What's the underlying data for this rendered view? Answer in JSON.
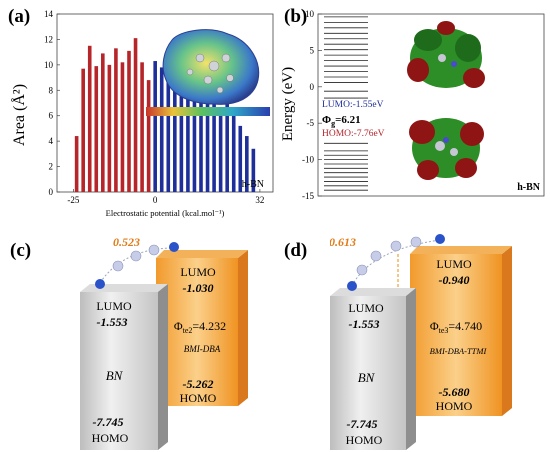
{
  "panels": {
    "a": {
      "label": "(a)",
      "ylabel": "Area (Å²)",
      "xlabel": "Electrostatic potential (kcal.mol⁻¹)",
      "tag": "h-BN",
      "xticks": [
        "-25",
        "0",
        "32"
      ],
      "yticks": [
        "0",
        "2",
        "4",
        "6",
        "8",
        "10",
        "12",
        "14"
      ],
      "colors": {
        "negative": "#b5252a",
        "positive": "#1f2f9a"
      }
    },
    "b": {
      "label": "(b)",
      "ylabel": "Energy (eV)",
      "yticks": [
        "10",
        "5",
        "0",
        "-5",
        "-10",
        "-15"
      ],
      "lumo": "LUMO:-1.55eV",
      "gap_symbol": "Φ",
      "gap_sub": "g",
      "gap_value": "=6.21",
      "homo": "HOMO:-7.76eV",
      "tag": "h-BN"
    },
    "c": {
      "label": "(c)",
      "delta": "0.523",
      "left_lumo_label": "LUMO",
      "left_lumo_value": "-1.553",
      "left_name": "BN",
      "left_homo_value": "-7.745",
      "left_homo_label": "HOMO",
      "right_lumo_label": "LUMO",
      "right_lumo_value": "-1.030",
      "phi_symbol": "Φ",
      "phi_sub": "te2",
      "phi_value": "=4.232",
      "right_name": "BMI-DBA",
      "right_homo_value": "-5.262",
      "right_homo_label": "HOMO"
    },
    "d": {
      "label": "(d)",
      "delta": "0.613",
      "left_lumo_label": "LUMO",
      "left_lumo_value": "-1.553",
      "left_name": "BN",
      "left_homo_value": "-7.745",
      "left_homo_label": "HOMO",
      "right_lumo_label": "LUMO",
      "right_lumo_value": "-0.940",
      "phi_symbol": "Φ",
      "phi_sub": "te3",
      "phi_value": "=4.740",
      "right_name": "BMI-DBA-TTMI",
      "right_homo_value": "-5.680",
      "right_homo_label": "HOMO"
    }
  },
  "chart_data": {
    "type": "bar",
    "title": "",
    "xlabel": "Electrostatic potential (kcal.mol⁻¹)",
    "ylabel": "Area (Å²)",
    "ylim": [
      0,
      14
    ],
    "xlim": [
      -30,
      36
    ],
    "x": [
      -24,
      -22,
      -20,
      -18,
      -16,
      -14,
      -12,
      -10,
      -8,
      -6,
      -4,
      -2,
      0,
      2,
      4,
      6,
      8,
      10,
      12,
      14,
      16,
      18,
      20,
      22,
      24,
      26,
      28,
      30
    ],
    "values": [
      4.4,
      9.7,
      11.5,
      9.9,
      10.9,
      10.0,
      11.3,
      10.2,
      11.1,
      12.1,
      10.2,
      8.8,
      10.3,
      9.8,
      9.4,
      10.0,
      8.6,
      7.3,
      7.8,
      7.1,
      7.0,
      7.3,
      6.2,
      7.9,
      6.5,
      5.2,
      4.4,
      3.4
    ]
  }
}
